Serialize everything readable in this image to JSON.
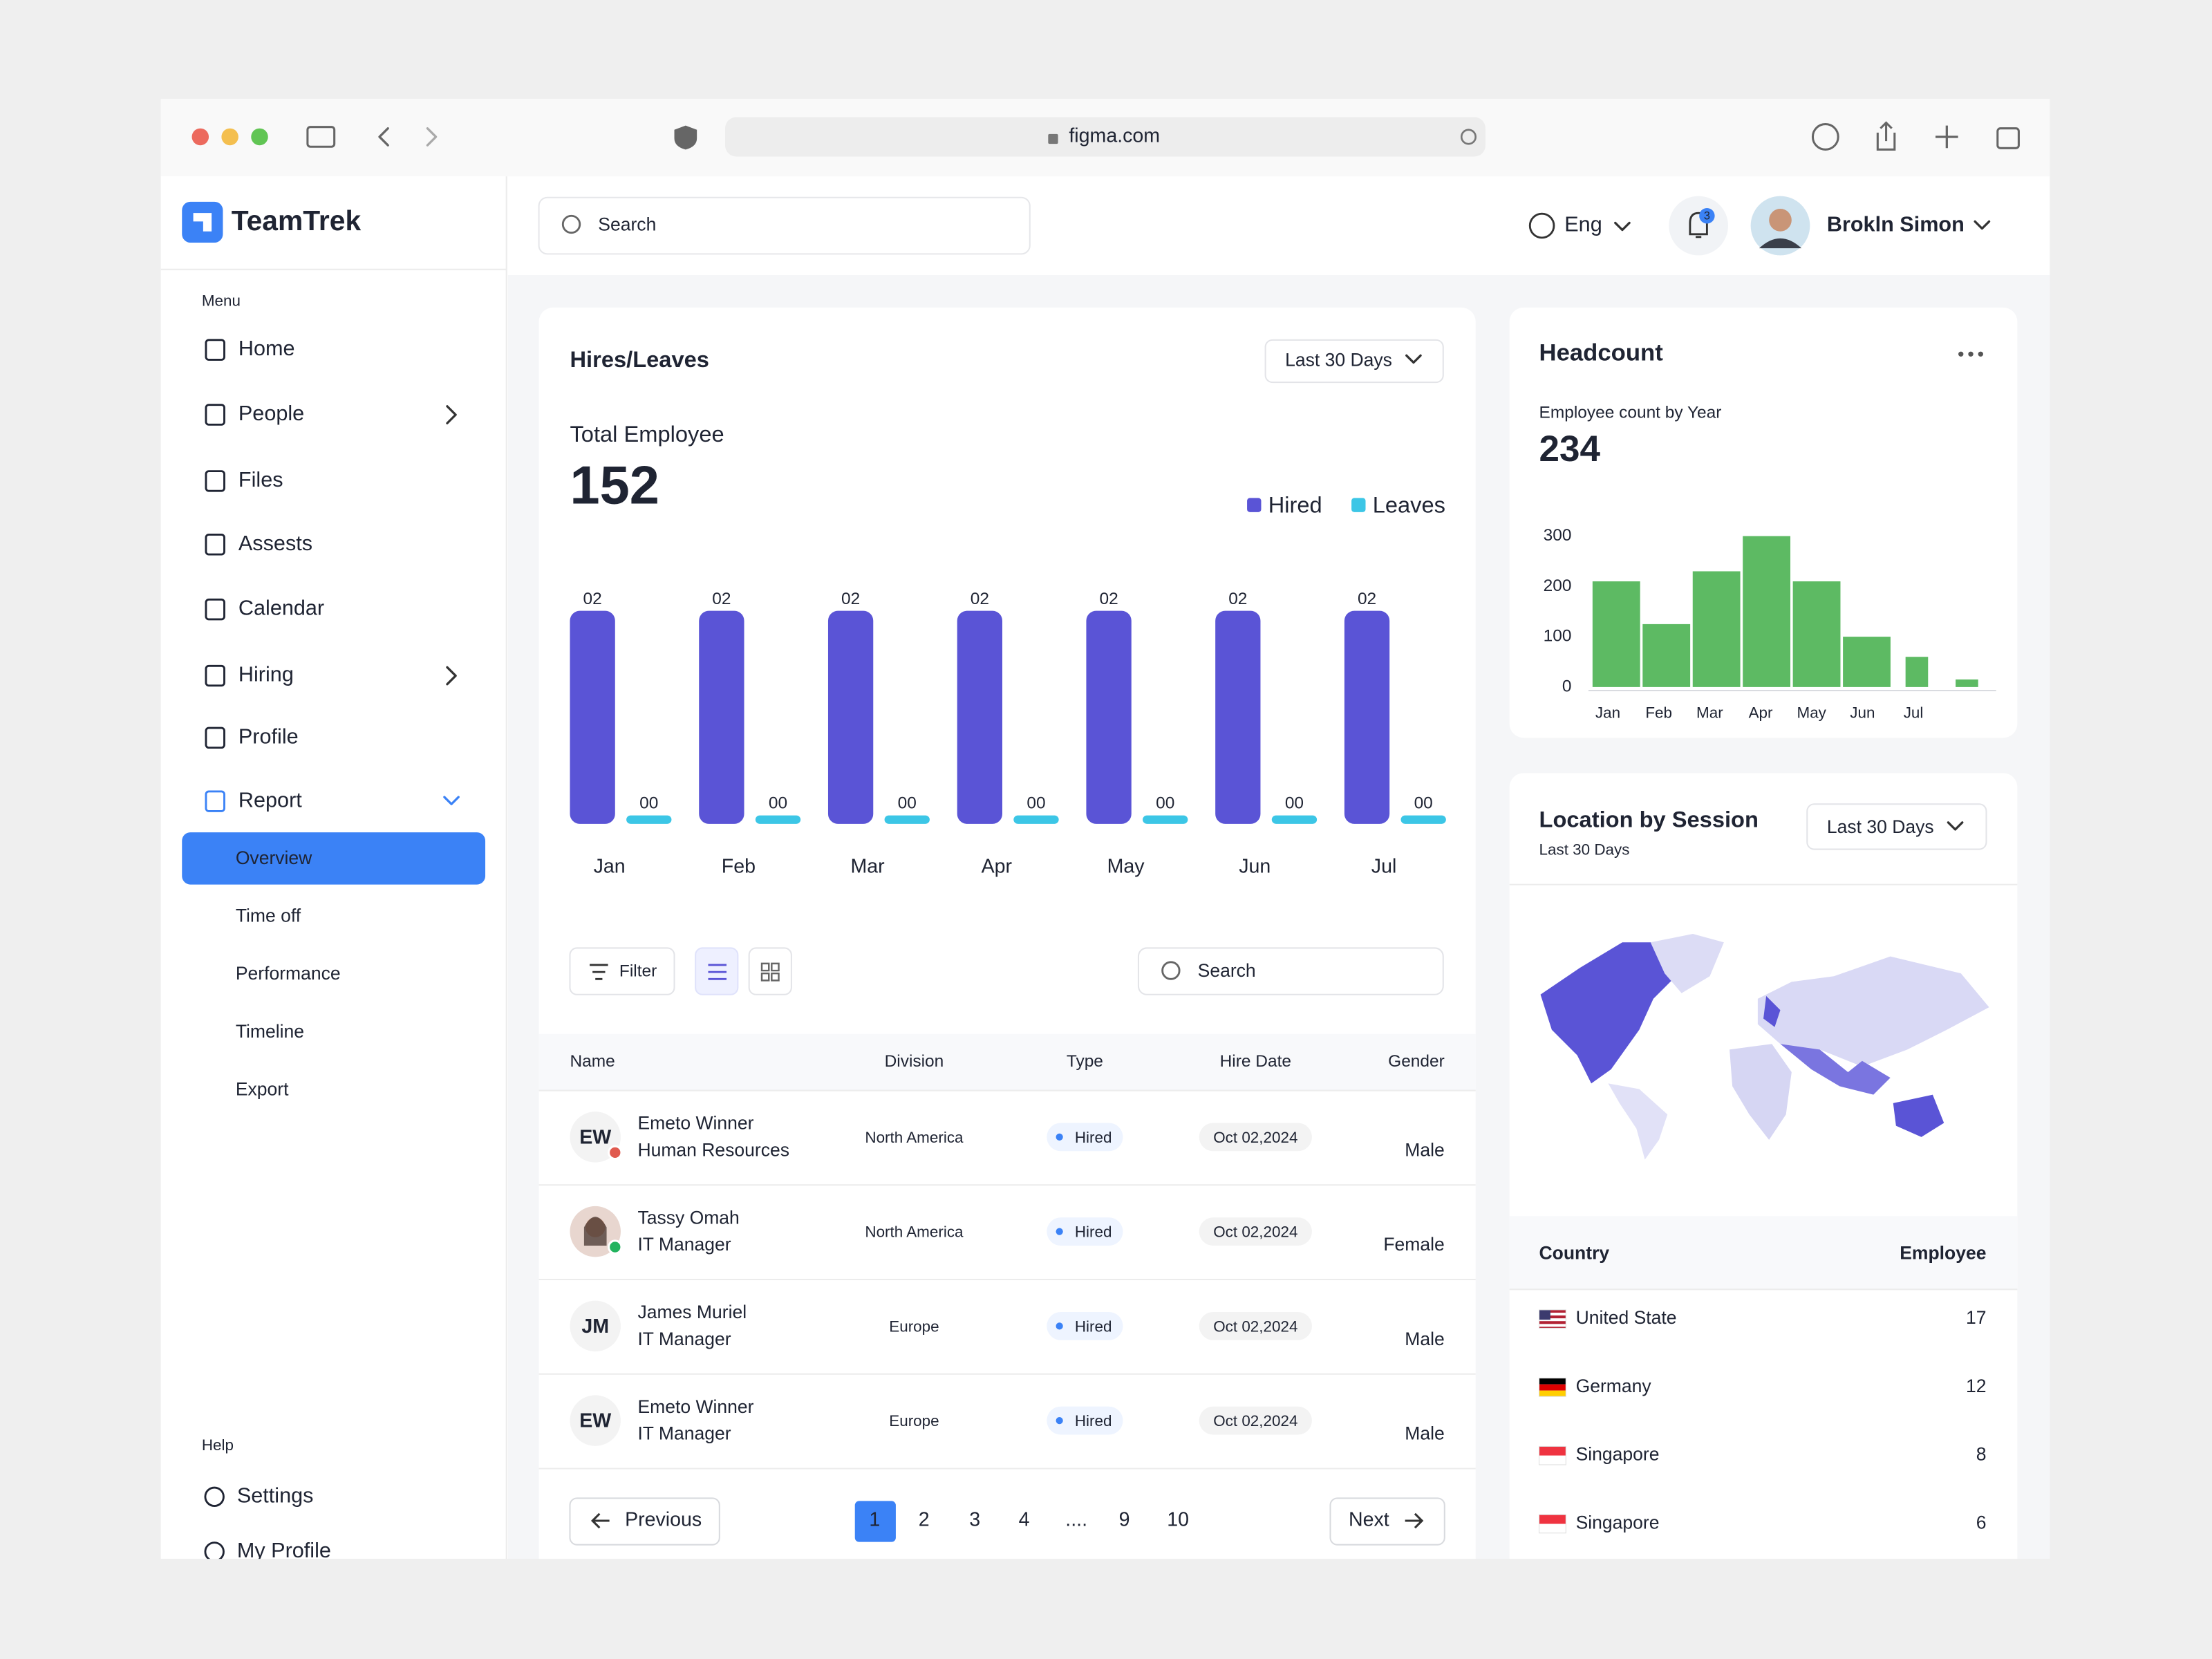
{
  "browser": {
    "url": "figma.com"
  },
  "brand": "TeamTrek",
  "header": {
    "search_placeholder": "Search",
    "language": "Eng",
    "notification_count": 3,
    "user": "Brokln Simon"
  },
  "sidebar": {
    "menu_label": "Menu",
    "items": [
      "Home",
      "People",
      "Files",
      "Assests",
      "Calendar",
      "Hiring",
      "Profile",
      "Report"
    ],
    "subitems": [
      "Overview",
      "Time off",
      "Performance",
      "Timeline",
      "Export"
    ],
    "help_label": "Help",
    "help_items": [
      "Settings",
      "My Profile"
    ]
  },
  "hires": {
    "title": "Hires/Leaves",
    "range": "Last 30 Days",
    "total_label": "Total Employee",
    "total": 152,
    "chart": {
      "type": "bar",
      "categories": [
        "Jan",
        "Feb",
        "Mar",
        "Apr",
        "May",
        "Jun",
        "Jul"
      ],
      "series": [
        {
          "name": "Hired",
          "color": "#5a54d6",
          "values": [
            2,
            2,
            2,
            2,
            2,
            2,
            2
          ],
          "value_labels": [
            "02",
            "02",
            "02",
            "02",
            "02",
            "02",
            "02"
          ]
        },
        {
          "name": "Leaves",
          "color": "#3cc6e6",
          "values": [
            0,
            0,
            0,
            0,
            0,
            0,
            0
          ],
          "value_labels": [
            "00",
            "00",
            "00",
            "00",
            "00",
            "00",
            "00"
          ]
        }
      ]
    }
  },
  "table": {
    "filter": "Filter",
    "search_placeholder": "Search",
    "columns": [
      "Name",
      "Division",
      "Type",
      "Hire Date",
      "Gender"
    ],
    "rows": [
      {
        "initials": "EW",
        "name": "Emeto  Winner",
        "role": "Human Resources",
        "division": "North America",
        "type": "Hired",
        "hire_date": "Oct 02,2024",
        "gender": "Male"
      },
      {
        "name": "Tassy Omah",
        "role": "IT Manager",
        "division": "North America",
        "type": "Hired",
        "hire_date": "Oct 02,2024",
        "gender": "Female"
      },
      {
        "initials": "JM",
        "name": "James Muriel",
        "role": "IT Manager",
        "division": "Europe",
        "type": "Hired",
        "hire_date": "Oct 02,2024",
        "gender": "Male"
      },
      {
        "initials": "EW",
        "name": "Emeto  Winner",
        "role": "IT Manager",
        "division": "Europe",
        "type": "Hired",
        "hire_date": "Oct 02,2024",
        "gender": "Male"
      }
    ],
    "pagination": {
      "previous": "Previous",
      "pages": [
        1,
        2,
        3,
        4,
        "....",
        9,
        10
      ],
      "next": "Next"
    }
  },
  "headcount": {
    "title": "Headcount",
    "subtitle": "Employee count by Year",
    "total": 234,
    "chart": {
      "type": "bar",
      "categories": [
        "Jan",
        "Feb",
        "Mar",
        "Apr",
        "May",
        "Jun",
        "Jul",
        null
      ],
      "values": [
        210,
        125,
        230,
        300,
        210,
        100,
        60,
        15
      ],
      "color": "#5dba63",
      "ylim": [
        0,
        300
      ],
      "yticks": [
        0,
        100,
        200,
        300
      ]
    }
  },
  "location": {
    "title": "Location by Session",
    "subtitle": "Last 30 Days",
    "range": "Last 30 Days",
    "columns": [
      "Country",
      "Employee"
    ],
    "rows": [
      {
        "country": "United State",
        "employees": 17
      },
      {
        "country": "Germany",
        "employees": 12
      },
      {
        "country": "Singapore",
        "employees": 8
      },
      {
        "country": "Singapore",
        "employees": 6
      }
    ]
  }
}
